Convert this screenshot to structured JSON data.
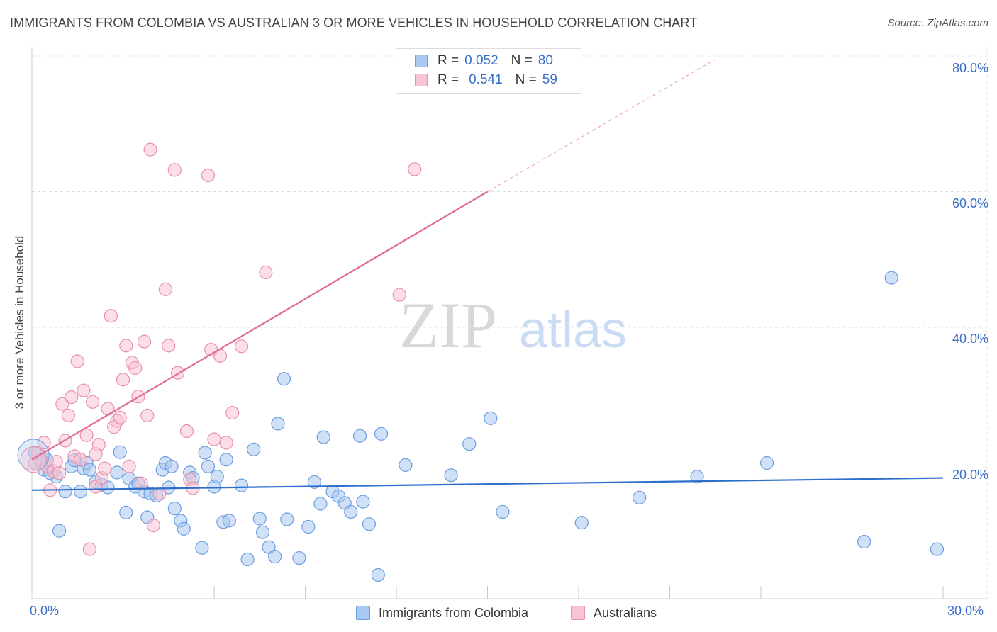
{
  "title": "IMMIGRANTS FROM COLOMBIA VS AUSTRALIAN 3 OR MORE VEHICLES IN HOUSEHOLD CORRELATION CHART",
  "source": "Source: ZipAtlas.com",
  "watermark": {
    "zip": "ZIP",
    "atlas": "atlas"
  },
  "legend": {
    "rows": [
      {
        "r_label": "R =",
        "r_value": "0.052",
        "n_label": "N =",
        "n_value": "80",
        "color": "#a9c8f0",
        "border": "#6b9de0"
      },
      {
        "r_label": "R =",
        "r_value": "0.541",
        "n_label": "N =",
        "n_value": "59",
        "color": "#f8c3d3",
        "border": "#e890aa"
      }
    ]
  },
  "bottom_legend": [
    {
      "label": "Immigrants from Colombia",
      "color": "#a9c8f0",
      "border": "#6b9de0"
    },
    {
      "label": "Australians",
      "color": "#f8c3d3",
      "border": "#e890aa"
    }
  ],
  "x_tick_labels": {
    "left": "0.0%",
    "right": "30.0%"
  },
  "y_tick_labels": [
    "80.0%",
    "60.0%",
    "40.0%",
    "20.0%"
  ],
  "chart_data": {
    "type": "scatter",
    "title": "IMMIGRANTS FROM COLOMBIA VS AUSTRALIAN 3 OR MORE VEHICLES IN HOUSEHOLD CORRELATION CHART",
    "xlabel": "",
    "ylabel": "3 or more Vehicles in Household",
    "xlim": [
      0,
      30
    ],
    "ylim": [
      0,
      80
    ],
    "y_ticks": [
      20,
      40,
      60,
      80
    ],
    "grid": true,
    "series": [
      {
        "name": "Immigrants from Colombia",
        "color": "#a9c8f0",
        "stroke": "#6b9de0",
        "trend": {
          "x0": 0,
          "y0": 16.0,
          "x1": 30,
          "y1": 17.8,
          "color": "#2f6fcc"
        },
        "points": [
          [
            0.1,
            21.5
          ],
          [
            0.3,
            20
          ],
          [
            0.4,
            19
          ],
          [
            0.6,
            18.5
          ],
          [
            0.8,
            18
          ],
          [
            0.9,
            10
          ],
          [
            1.1,
            15.8
          ],
          [
            1.3,
            19.5
          ],
          [
            1.4,
            20.4
          ],
          [
            1.6,
            15.8
          ],
          [
            1.7,
            19.2
          ],
          [
            1.8,
            20
          ],
          [
            1.9,
            19
          ],
          [
            2.1,
            17.2
          ],
          [
            2.3,
            16.8
          ],
          [
            2.5,
            16.4
          ],
          [
            2.8,
            18.6
          ],
          [
            2.9,
            21.6
          ],
          [
            3.1,
            12.7
          ],
          [
            3.2,
            17.7
          ],
          [
            3.4,
            16.5
          ],
          [
            3.5,
            17
          ],
          [
            3.7,
            15.8
          ],
          [
            3.8,
            12
          ],
          [
            3.9,
            15.5
          ],
          [
            4.1,
            15.2
          ],
          [
            4.3,
            19
          ],
          [
            4.4,
            20
          ],
          [
            4.5,
            16.4
          ],
          [
            4.6,
            19.5
          ],
          [
            4.7,
            13.3
          ],
          [
            4.9,
            11.5
          ],
          [
            5.0,
            10.3
          ],
          [
            5.2,
            18.6
          ],
          [
            5.3,
            17.8
          ],
          [
            5.6,
            7.5
          ],
          [
            5.7,
            21.5
          ],
          [
            5.8,
            19.5
          ],
          [
            6.0,
            16.5
          ],
          [
            6.1,
            18
          ],
          [
            6.3,
            11.3
          ],
          [
            6.4,
            20.5
          ],
          [
            6.5,
            11.5
          ],
          [
            6.9,
            16.7
          ],
          [
            7.1,
            5.8
          ],
          [
            7.3,
            22
          ],
          [
            7.5,
            11.8
          ],
          [
            7.6,
            9.8
          ],
          [
            7.8,
            7.6
          ],
          [
            8.0,
            6.2
          ],
          [
            8.1,
            25.8
          ],
          [
            8.3,
            32.4
          ],
          [
            8.4,
            11.7
          ],
          [
            8.8,
            6
          ],
          [
            9.1,
            10.6
          ],
          [
            9.3,
            17.2
          ],
          [
            9.5,
            14
          ],
          [
            9.6,
            23.8
          ],
          [
            9.9,
            15.8
          ],
          [
            10.1,
            15.1
          ],
          [
            10.3,
            14.1
          ],
          [
            10.5,
            12.8
          ],
          [
            10.8,
            24
          ],
          [
            10.9,
            14.3
          ],
          [
            11.1,
            11
          ],
          [
            11.4,
            3.5
          ],
          [
            11.5,
            24.3
          ],
          [
            12.3,
            19.7
          ],
          [
            13.8,
            18.2
          ],
          [
            14.4,
            22.8
          ],
          [
            15.1,
            26.6
          ],
          [
            15.5,
            12.8
          ],
          [
            18.1,
            11.2
          ],
          [
            20.0,
            14.9
          ],
          [
            21.9,
            18
          ],
          [
            24.2,
            20
          ],
          [
            27.4,
            8.4
          ],
          [
            28.3,
            47.3
          ],
          [
            29.8,
            7.3
          ],
          [
            0.5,
            20.5
          ]
        ]
      },
      {
        "name": "Australians",
        "color": "#f8c3d3",
        "stroke": "#e890aa",
        "trend": {
          "x0": 0,
          "y0": 20.5,
          "x1": 15,
          "y1": 60,
          "color": "#e06b95"
        },
        "trend_extension": {
          "x0": 15,
          "y0": 60,
          "x1": 22.5,
          "y1": 79.5
        },
        "points": [
          [
            0.1,
            20
          ],
          [
            0.2,
            21.5
          ],
          [
            0.3,
            20.5
          ],
          [
            0.4,
            23
          ],
          [
            0.5,
            19.5
          ],
          [
            0.6,
            16
          ],
          [
            0.7,
            18.8
          ],
          [
            0.9,
            18.5
          ],
          [
            1.0,
            28.7
          ],
          [
            1.1,
            23.3
          ],
          [
            1.2,
            27
          ],
          [
            1.3,
            29.7
          ],
          [
            1.4,
            21
          ],
          [
            1.5,
            35
          ],
          [
            1.6,
            20.5
          ],
          [
            1.7,
            30.7
          ],
          [
            1.8,
            24.1
          ],
          [
            1.9,
            7.3
          ],
          [
            2.0,
            29
          ],
          [
            2.1,
            16.5
          ],
          [
            2.2,
            22.7
          ],
          [
            2.3,
            17.8
          ],
          [
            2.4,
            19.2
          ],
          [
            2.5,
            28
          ],
          [
            2.6,
            41.7
          ],
          [
            2.7,
            25.3
          ],
          [
            2.8,
            26.2
          ],
          [
            2.9,
            26.7
          ],
          [
            3.0,
            32.3
          ],
          [
            3.1,
            37.3
          ],
          [
            3.2,
            19.5
          ],
          [
            3.3,
            34.8
          ],
          [
            3.4,
            34
          ],
          [
            3.5,
            29.8
          ],
          [
            3.6,
            17
          ],
          [
            3.7,
            37.9
          ],
          [
            3.8,
            27
          ],
          [
            3.9,
            66.2
          ],
          [
            4.0,
            10.8
          ],
          [
            4.2,
            15.5
          ],
          [
            4.4,
            45.6
          ],
          [
            4.5,
            37.3
          ],
          [
            4.7,
            63.2
          ],
          [
            4.8,
            33.3
          ],
          [
            5.1,
            24.7
          ],
          [
            5.2,
            17.6
          ],
          [
            5.3,
            16.3
          ],
          [
            5.8,
            62.4
          ],
          [
            5.9,
            36.7
          ],
          [
            6.0,
            23.5
          ],
          [
            6.2,
            35.8
          ],
          [
            6.4,
            23
          ],
          [
            6.6,
            27.4
          ],
          [
            6.9,
            37.2
          ],
          [
            7.7,
            48.1
          ],
          [
            12.1,
            44.8
          ],
          [
            12.6,
            63.3
          ],
          [
            2.1,
            21.3
          ],
          [
            0.8,
            20.2
          ]
        ]
      }
    ]
  }
}
